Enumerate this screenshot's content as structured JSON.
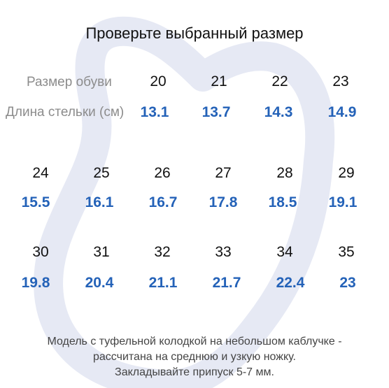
{
  "title": "Проверьте выбранный размер",
  "labels": {
    "shoe_size": "Размер обуви",
    "insole_length": "Длина стельки (см)"
  },
  "rows": [
    {
      "sizes": [
        "20",
        "21",
        "22",
        "23"
      ],
      "lengths": [
        "13.1",
        "13.7",
        "14.3",
        "14.9"
      ]
    },
    {
      "sizes": [
        "24",
        "25",
        "26",
        "27",
        "28",
        "29"
      ],
      "lengths": [
        "15.5",
        "16.1",
        "16.7",
        "17.8",
        "18.5",
        "19.1"
      ]
    },
    {
      "sizes": [
        "30",
        "31",
        "32",
        "33",
        "34",
        "35"
      ],
      "lengths": [
        "19.8",
        "20.4",
        "21.1",
        "21.7",
        "22.4",
        "23"
      ]
    }
  ],
  "note": [
    "Модель с туфельной колодкой на небольшом каблучке -",
    "рассчитана на среднюю и узкую ножку.",
    "Закладывайте припуск 5-7 мм."
  ],
  "colors": {
    "value_blue": "#2462b8",
    "watermark": "#e6e9f4",
    "label_gray": "#8c8c8c"
  }
}
